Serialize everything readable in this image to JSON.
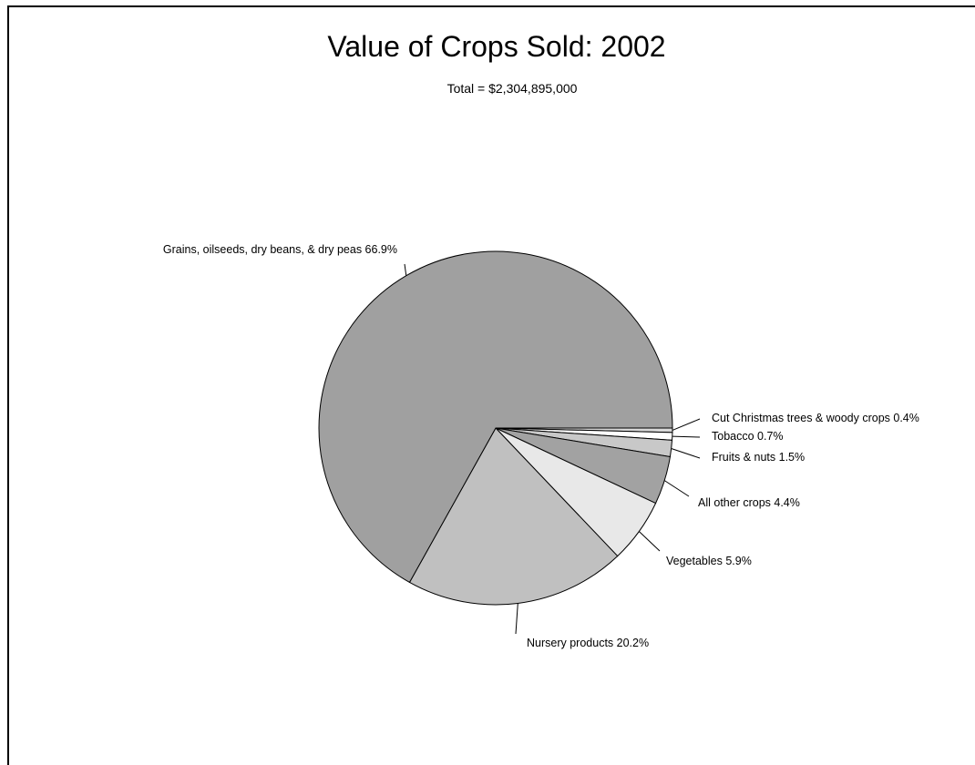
{
  "chart_data": {
    "type": "pie",
    "title": "Value of Crops Sold:  2002",
    "subtitle": "Total = $2,304,895,000",
    "slices": [
      {
        "label": "Cut Christmas trees & woody crops 0.4%",
        "name": "Cut Christmas trees & woody crops",
        "value": 0.4,
        "color": "#d8d8d8"
      },
      {
        "label": "Tobacco 0.7%",
        "name": "Tobacco",
        "value": 0.7,
        "color": "#ffffff"
      },
      {
        "label": "Fruits & nuts 1.5%",
        "name": "Fruits & nuts",
        "value": 1.5,
        "color": "#c8c8c8"
      },
      {
        "label": "All other crops 4.4%",
        "name": "All other crops",
        "value": 4.4,
        "color": "#a2a2a2"
      },
      {
        "label": "Vegetables 5.9%",
        "name": "Vegetables",
        "value": 5.9,
        "color": "#e8e8e8"
      },
      {
        "label": "Nursery products 20.2%",
        "name": "Nursery products",
        "value": 20.2,
        "color": "#c0c0c0"
      },
      {
        "label": "Grains, oilseeds, dry beans, & dry peas 66.9%",
        "name": "Grains, oilseeds, dry beans, & dry peas",
        "value": 66.9,
        "color": "#a0a0a0"
      }
    ]
  }
}
